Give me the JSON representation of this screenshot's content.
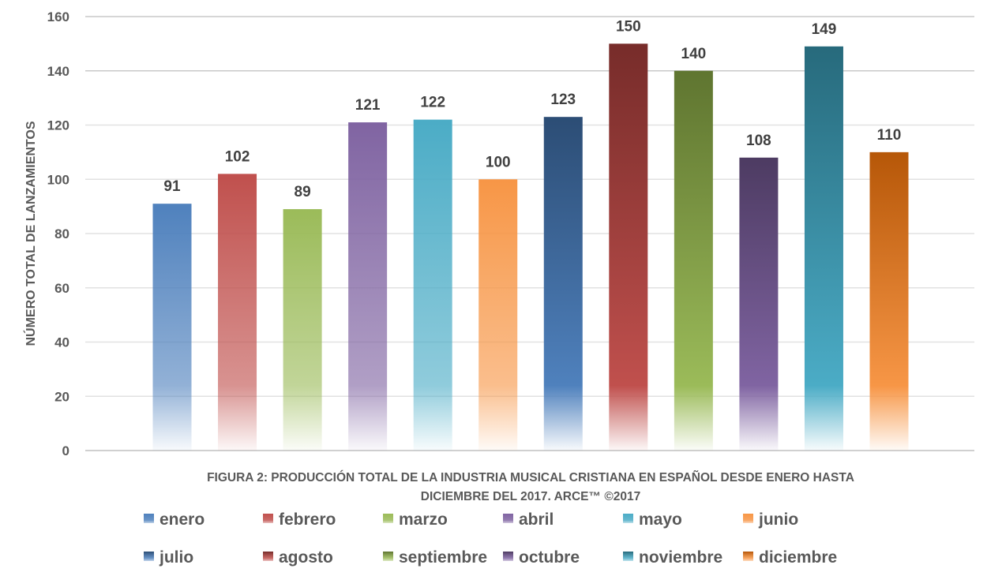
{
  "chart_data": {
    "type": "bar",
    "title_lines": [
      "FIGURA 2: PRODUCCIÓN TOTAL DE LA INDUSTRIA MUSICAL CRISTIANA EN ESPAÑOL DESDE ENERO HASTA",
      "DICIEMBRE DEL 2017.  ARCE™ ©2017"
    ],
    "xlabel": "",
    "ylabel": "NÚMERO TOTAL DE LANZAMIENTOS",
    "ylim": [
      0,
      160
    ],
    "yticks": [
      0,
      20,
      40,
      60,
      80,
      100,
      120,
      140,
      160
    ],
    "grid": true,
    "legend_position": "bottom",
    "categories": [
      "enero",
      "febrero",
      "marzo",
      "abril",
      "mayo",
      "junio",
      "julio",
      "agosto",
      "septiembre",
      "octubre",
      "noviembre",
      "diciembre"
    ],
    "series": [
      {
        "name": "enero",
        "value": 91,
        "color": "#4F81BD",
        "base_color": "#4F81BD"
      },
      {
        "name": "febrero",
        "value": 102,
        "color": "#C0504D",
        "base_color": "#C0504D"
      },
      {
        "name": "marzo",
        "value": 89,
        "color": "#9BBB59",
        "base_color": "#9BBB59"
      },
      {
        "name": "abril",
        "value": 121,
        "color": "#8064A2",
        "base_color": "#8064A2"
      },
      {
        "name": "mayo",
        "value": 122,
        "color": "#4BACC6",
        "base_color": "#4BACC6"
      },
      {
        "name": "junio",
        "value": 100,
        "color": "#F79646",
        "base_color": "#F79646"
      },
      {
        "name": "julio",
        "value": 123,
        "color": "#2C4D75",
        "base_color": "#4F81BD"
      },
      {
        "name": "agosto",
        "value": 150,
        "color": "#772C2A",
        "base_color": "#C0504D"
      },
      {
        "name": "septiembre",
        "value": 140,
        "color": "#5F7530",
        "base_color": "#9BBB59"
      },
      {
        "name": "octubre",
        "value": 108,
        "color": "#4D3B62",
        "base_color": "#8064A2"
      },
      {
        "name": "noviembre",
        "value": 149,
        "color": "#276A7C",
        "base_color": "#4BACC6"
      },
      {
        "name": "diciembre",
        "value": 110,
        "color": "#B65708",
        "base_color": "#F79646"
      }
    ]
  }
}
